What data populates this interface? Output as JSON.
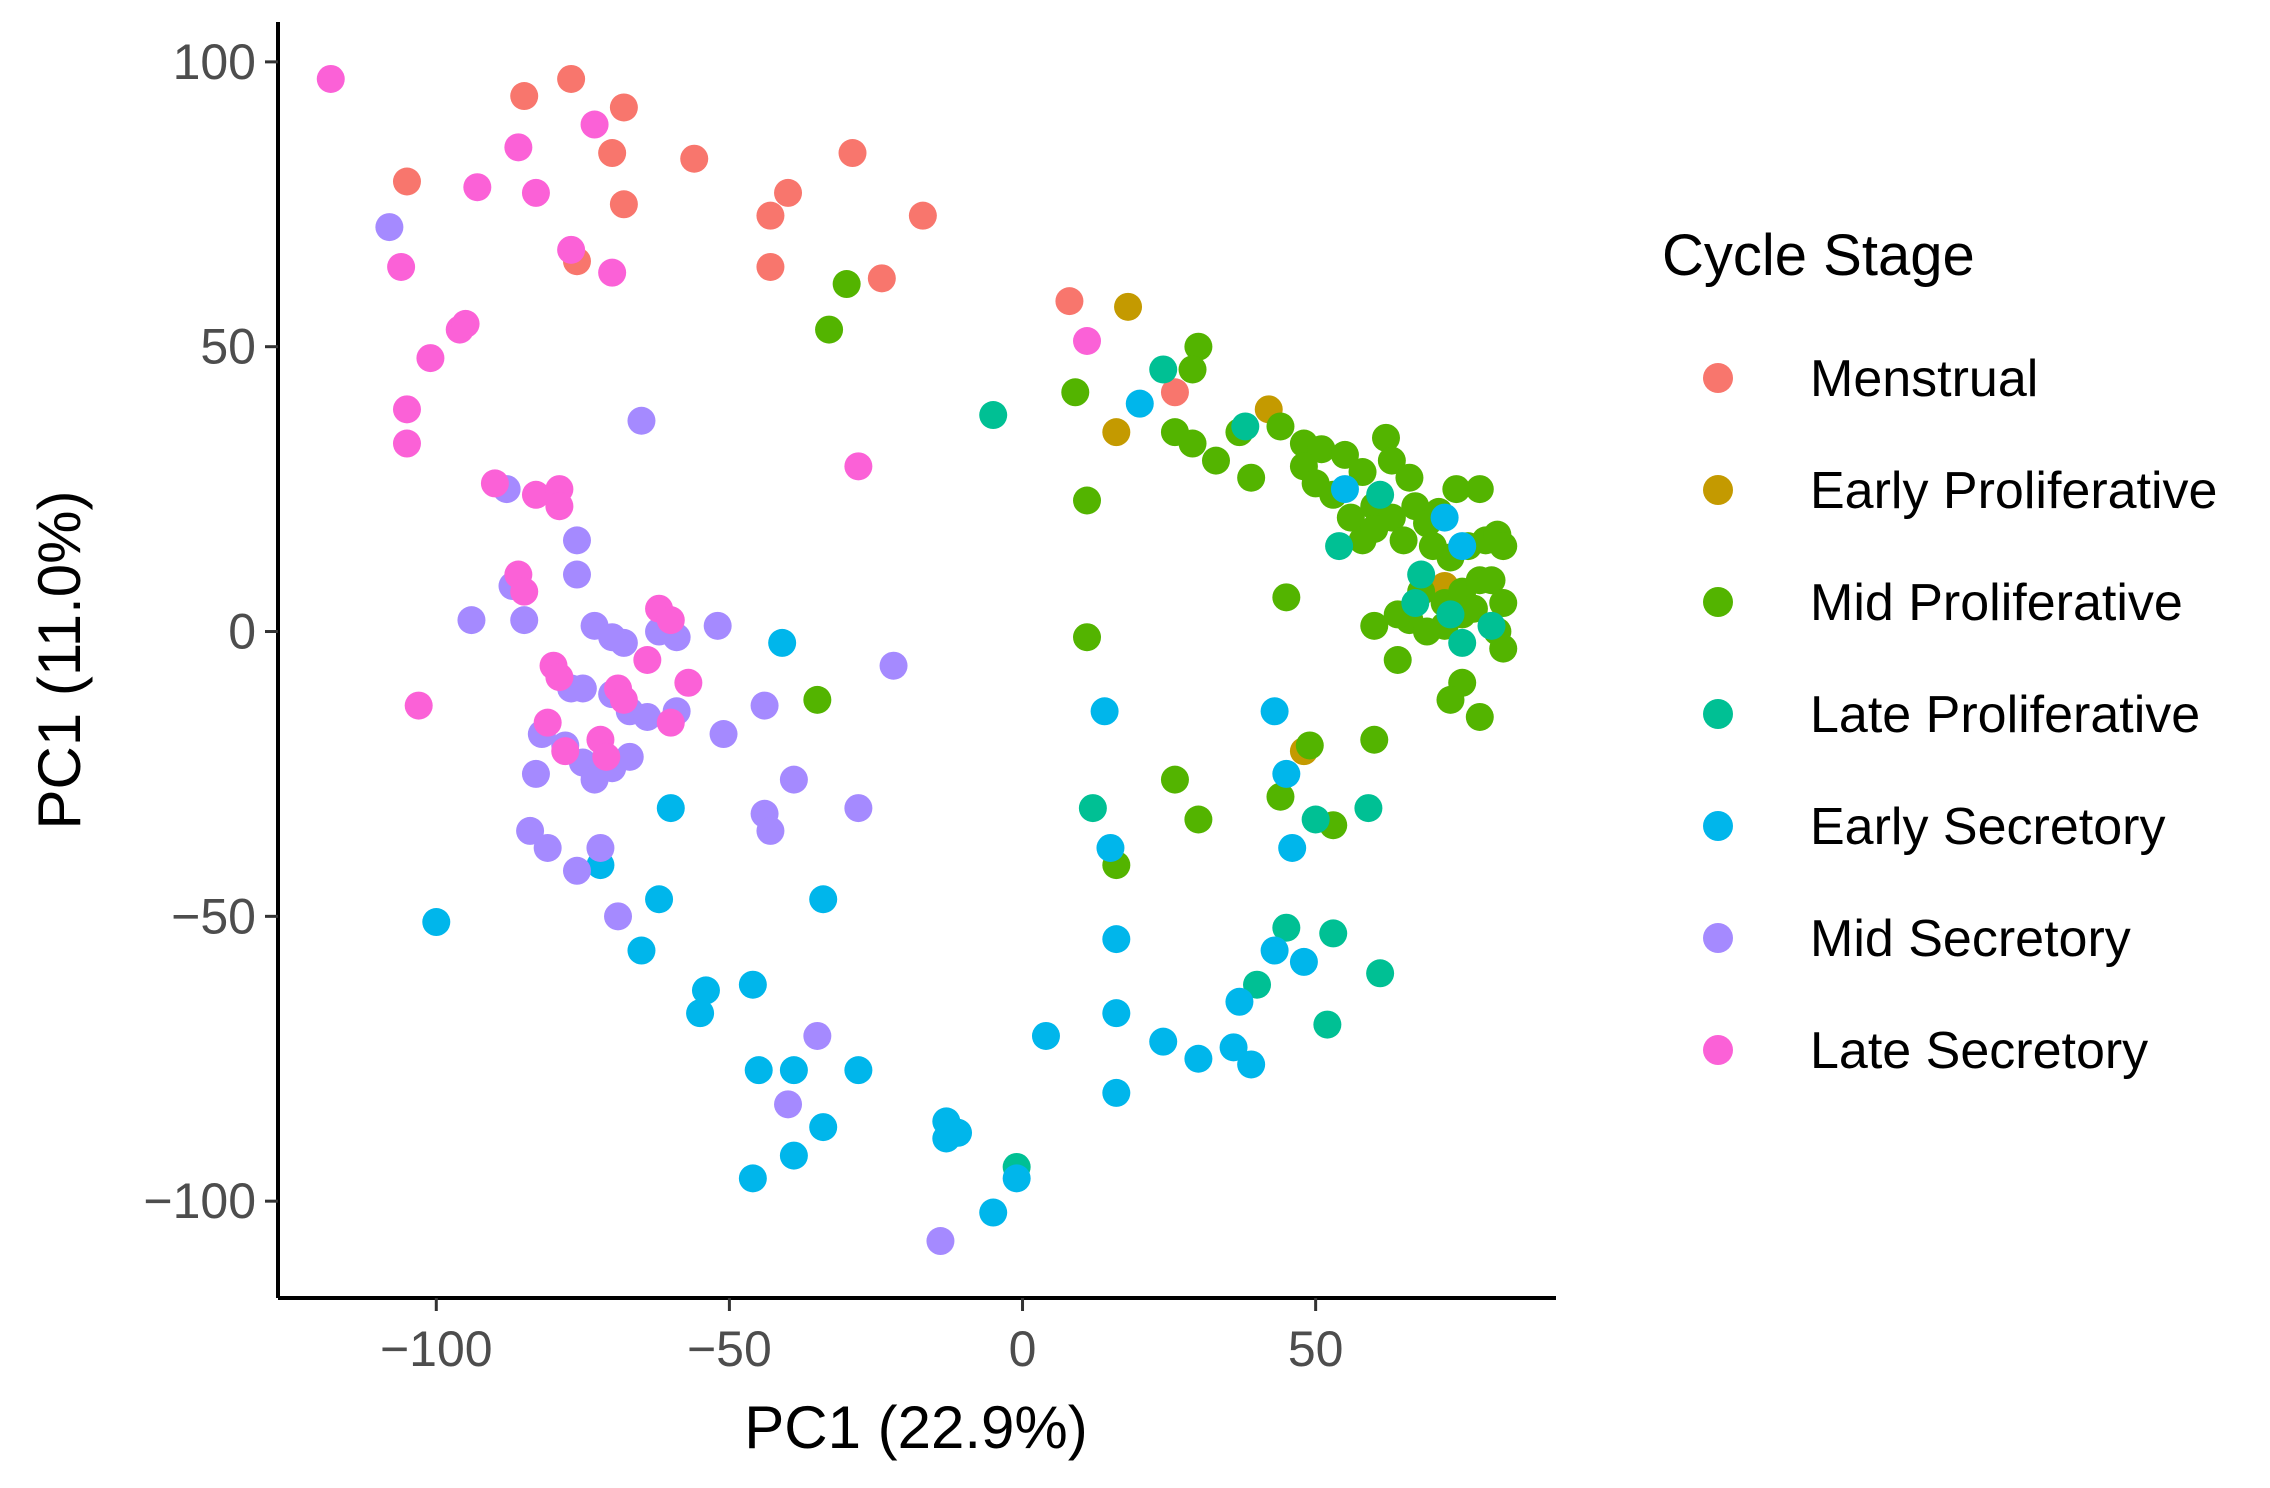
{
  "chart_data": {
    "type": "scatter",
    "title": "",
    "xlabel": "PC1 (22.9%)",
    "ylabel": "PC1 (11.0%)",
    "xlim": [
      -127,
      91
    ],
    "ylim": [
      -117,
      107
    ],
    "x_ticks": [
      -100,
      -50,
      0,
      50
    ],
    "y_ticks": [
      100,
      50,
      0,
      -50,
      -100
    ],
    "x_tick_labels": [
      "−100",
      "−50",
      "0",
      "50"
    ],
    "y_tick_labels": [
      "100",
      "50",
      "0",
      "−50",
      "−100"
    ],
    "grid": false,
    "legend": {
      "title": "Cycle Stage",
      "position": "right"
    },
    "series": [
      {
        "name": "Menstrual",
        "color": "#F8766D",
        "points": [
          [
            -105,
            79
          ],
          [
            -85,
            94
          ],
          [
            -77,
            97
          ],
          [
            -68,
            92
          ],
          [
            -70,
            84
          ],
          [
            -56,
            83
          ],
          [
            -29,
            84
          ],
          [
            -40,
            77
          ],
          [
            -68,
            75
          ],
          [
            -43,
            73
          ],
          [
            -17,
            73
          ],
          [
            -76,
            65
          ],
          [
            -43,
            64
          ],
          [
            -24,
            62
          ],
          [
            8,
            58
          ],
          [
            26,
            42
          ]
        ]
      },
      {
        "name": "Early Proliferative",
        "color": "#C49A00",
        "points": [
          [
            18,
            57
          ],
          [
            42,
            39
          ],
          [
            16,
            35
          ],
          [
            48,
            -21
          ],
          [
            72,
            8
          ]
        ]
      },
      {
        "name": "Mid Proliferative",
        "color": "#53B400",
        "points": [
          [
            -30,
            61
          ],
          [
            -33,
            53
          ],
          [
            30,
            50
          ],
          [
            29,
            46
          ],
          [
            9,
            42
          ],
          [
            26,
            35
          ],
          [
            29,
            33
          ],
          [
            33,
            30
          ],
          [
            37,
            35
          ],
          [
            44,
            36
          ],
          [
            39,
            27
          ],
          [
            48,
            33
          ],
          [
            51,
            32
          ],
          [
            55,
            31
          ],
          [
            48,
            29
          ],
          [
            50,
            26
          ],
          [
            53,
            24
          ],
          [
            56,
            20
          ],
          [
            58,
            28
          ],
          [
            62,
            34
          ],
          [
            63,
            30
          ],
          [
            66,
            27
          ],
          [
            60,
            22
          ],
          [
            63,
            20
          ],
          [
            58,
            16
          ],
          [
            60,
            18
          ],
          [
            65,
            16
          ],
          [
            67,
            22
          ],
          [
            69,
            19
          ],
          [
            71,
            21
          ],
          [
            74,
            25
          ],
          [
            78,
            25
          ],
          [
            70,
            15
          ],
          [
            73,
            13
          ],
          [
            76,
            15
          ],
          [
            79,
            16
          ],
          [
            81,
            17
          ],
          [
            82,
            15
          ],
          [
            68,
            7
          ],
          [
            72,
            5
          ],
          [
            75,
            7
          ],
          [
            78,
            9
          ],
          [
            80,
            9
          ],
          [
            82,
            5
          ],
          [
            66,
            2
          ],
          [
            69,
            0
          ],
          [
            72,
            1
          ],
          [
            75,
            3
          ],
          [
            77,
            4
          ],
          [
            81,
            0
          ],
          [
            60,
            1
          ],
          [
            64,
            3
          ],
          [
            45,
            6
          ],
          [
            11,
            23
          ],
          [
            11,
            -1
          ],
          [
            64,
            -5
          ],
          [
            82,
            -3
          ],
          [
            75,
            -9
          ],
          [
            73,
            -12
          ],
          [
            78,
            -15
          ],
          [
            -35,
            -12
          ],
          [
            26,
            -26
          ],
          [
            49,
            -20
          ],
          [
            60,
            -19
          ],
          [
            44,
            -29
          ],
          [
            30,
            -33
          ],
          [
            53,
            -34
          ],
          [
            16,
            -41
          ]
        ]
      },
      {
        "name": "Late Proliferative",
        "color": "#00C094",
        "points": [
          [
            -5,
            38
          ],
          [
            24,
            46
          ],
          [
            38,
            36
          ],
          [
            61,
            24
          ],
          [
            54,
            15
          ],
          [
            68,
            10
          ],
          [
            75,
            -2
          ],
          [
            80,
            1
          ],
          [
            67,
            5
          ],
          [
            73,
            3
          ],
          [
            12,
            -31
          ],
          [
            50,
            -33
          ],
          [
            59,
            -31
          ],
          [
            45,
            -52
          ],
          [
            53,
            -53
          ],
          [
            40,
            -62
          ],
          [
            61,
            -60
          ],
          [
            52,
            -69
          ],
          [
            -1,
            -94
          ]
        ]
      },
      {
        "name": "Early Secretory",
        "color": "#00B6EB",
        "points": [
          [
            20,
            40
          ],
          [
            55,
            25
          ],
          [
            72,
            20
          ],
          [
            75,
            15
          ],
          [
            -41,
            -2
          ],
          [
            14,
            -14
          ],
          [
            43,
            -14
          ],
          [
            45,
            -25
          ],
          [
            -60,
            -31
          ],
          [
            15,
            -38
          ],
          [
            46,
            -38
          ],
          [
            -72,
            -41
          ],
          [
            -62,
            -47
          ],
          [
            -34,
            -47
          ],
          [
            16,
            -54
          ],
          [
            -65,
            -56
          ],
          [
            43,
            -56
          ],
          [
            48,
            -58
          ],
          [
            -54,
            -63
          ],
          [
            -46,
            -62
          ],
          [
            16,
            -67
          ],
          [
            37,
            -65
          ],
          [
            4,
            -71
          ],
          [
            24,
            -72
          ],
          [
            36,
            -73
          ],
          [
            30,
            -75
          ],
          [
            -45,
            -77
          ],
          [
            -39,
            -77
          ],
          [
            -28,
            -77
          ],
          [
            39,
            -76
          ],
          [
            16,
            -81
          ],
          [
            -34,
            -87
          ],
          [
            -13,
            -86
          ],
          [
            -13,
            -89
          ],
          [
            -11,
            -88
          ],
          [
            -39,
            -92
          ],
          [
            -46,
            -96
          ],
          [
            -1,
            -96
          ],
          [
            -5,
            -102
          ],
          [
            -100,
            -51
          ],
          [
            -55,
            -67
          ]
        ]
      },
      {
        "name": "Mid Secretory",
        "color": "#A58AFF",
        "points": [
          [
            -108,
            71
          ],
          [
            -65,
            37
          ],
          [
            -88,
            25
          ],
          [
            -76,
            16
          ],
          [
            -76,
            10
          ],
          [
            -87,
            8
          ],
          [
            -94,
            2
          ],
          [
            -85,
            2
          ],
          [
            -73,
            1
          ],
          [
            -70,
            -1
          ],
          [
            -68,
            -2
          ],
          [
            -62,
            0
          ],
          [
            -59,
            -1
          ],
          [
            -52,
            1
          ],
          [
            -22,
            -6
          ],
          [
            -77,
            -10
          ],
          [
            -75,
            -10
          ],
          [
            -70,
            -11
          ],
          [
            -67,
            -14
          ],
          [
            -64,
            -15
          ],
          [
            -59,
            -14
          ],
          [
            -44,
            -13
          ],
          [
            -82,
            -18
          ],
          [
            -78,
            -20
          ],
          [
            -75,
            -23
          ],
          [
            -73,
            -26
          ],
          [
            -70,
            -24
          ],
          [
            -67,
            -22
          ],
          [
            -51,
            -18
          ],
          [
            -83,
            -25
          ],
          [
            -39,
            -26
          ],
          [
            -84,
            -35
          ],
          [
            -81,
            -38
          ],
          [
            -44,
            -32
          ],
          [
            -43,
            -35
          ],
          [
            -28,
            -31
          ],
          [
            -72,
            -38
          ],
          [
            -76,
            -42
          ],
          [
            -69,
            -50
          ],
          [
            -35,
            -71
          ],
          [
            -40,
            -83
          ],
          [
            -14,
            -107
          ]
        ]
      },
      {
        "name": "Late Secretory",
        "color": "#FB61D7",
        "points": [
          [
            -118,
            97
          ],
          [
            -73,
            89
          ],
          [
            -86,
            85
          ],
          [
            -93,
            78
          ],
          [
            -83,
            77
          ],
          [
            -77,
            67
          ],
          [
            -106,
            64
          ],
          [
            -70,
            63
          ],
          [
            -96,
            53
          ],
          [
            -95,
            54
          ],
          [
            -101,
            48
          ],
          [
            11,
            51
          ],
          [
            -105,
            39
          ],
          [
            -105,
            33
          ],
          [
            -28,
            29
          ],
          [
            -90,
            26
          ],
          [
            -83,
            24
          ],
          [
            -79,
            25
          ],
          [
            -79,
            22
          ],
          [
            -86,
            10
          ],
          [
            -85,
            7
          ],
          [
            -62,
            4
          ],
          [
            -60,
            2
          ],
          [
            -64,
            -5
          ],
          [
            -80,
            -6
          ],
          [
            -79,
            -8
          ],
          [
            -57,
            -9
          ],
          [
            -69,
            -10
          ],
          [
            -68,
            -12
          ],
          [
            -103,
            -13
          ],
          [
            -81,
            -16
          ],
          [
            -60,
            -16
          ],
          [
            -78,
            -21
          ],
          [
            -72,
            -19
          ],
          [
            -71,
            -22
          ]
        ]
      }
    ]
  }
}
